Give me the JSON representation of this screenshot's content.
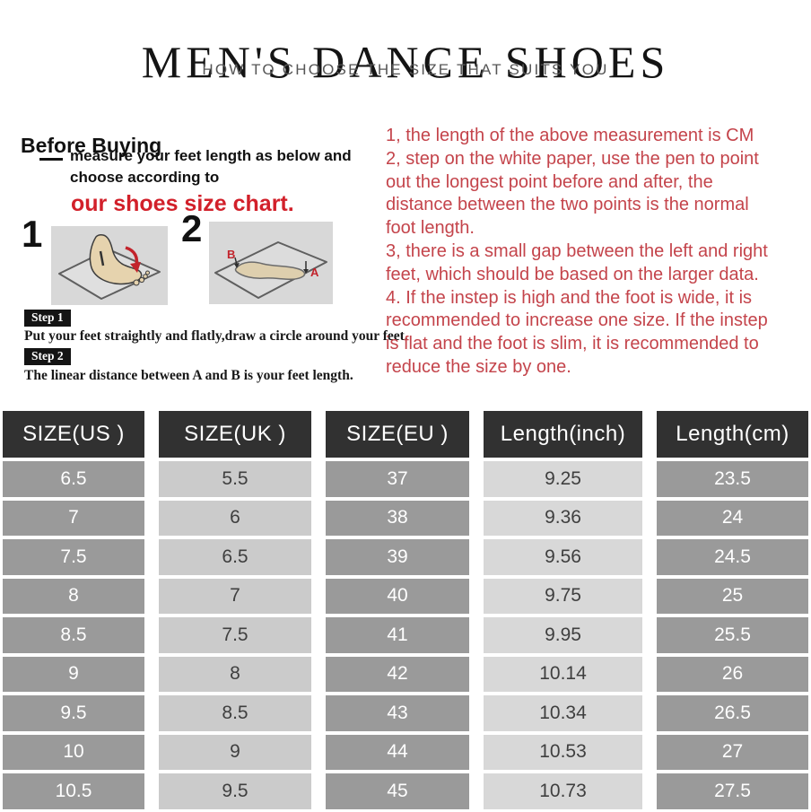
{
  "header": {
    "title": "MEN'S DANCE SHOES",
    "subtitle": "HOW TO CHOOSE THE SIZE THAT SUITS YOU"
  },
  "before_buying": {
    "heading": "Before Buying",
    "instruction_line1": "measure your feet length as below and",
    "instruction_line2": "choose according to",
    "highlight": "our shoes size chart.",
    "step1_number": "1",
    "step2_number": "2",
    "illustration1_icon": "foot-on-paper-icon",
    "illustration2_icon": "foot-outline-trace-icon",
    "marker_a": "A",
    "marker_b": "B",
    "step1_label": "Step 1",
    "step1_text": "Put your feet straightly and flatly,draw a circle around your feet.",
    "step2_label": "Step 2",
    "step2_text": "The linear distance between A and B is your feet length."
  },
  "notes": {
    "lines": [
      "1, the length of the above measurement is CM",
      "2, step on the white paper, use the pen to point",
      "out the longest point before and after, the",
      "distance between the two points is the normal",
      "foot length.",
      "3, there is a small gap between the left and right",
      "feet, which should be based on the larger data.",
      "4. If the instep is high and the foot is wide, it is",
      "recommended to increase one size. If the instep",
      "is flat and the foot is slim, it is recommended to",
      "reduce the size by one."
    ]
  },
  "size_table": {
    "headers": [
      "SIZE(US )",
      "SIZE(UK )",
      "SIZE(EU )",
      "Length(inch)",
      "Length(cm)"
    ],
    "rows": [
      [
        "6.5",
        "5.5",
        "37",
        "9.25",
        "23.5"
      ],
      [
        "7",
        "6",
        "38",
        "9.36",
        "24"
      ],
      [
        "7.5",
        "6.5",
        "39",
        "9.56",
        "24.5"
      ],
      [
        "8",
        "7",
        "40",
        "9.75",
        "25"
      ],
      [
        "8.5",
        "7.5",
        "41",
        "9.95",
        "25.5"
      ],
      [
        "9",
        "8",
        "42",
        "10.14",
        "26"
      ],
      [
        "9.5",
        "8.5",
        "43",
        "10.34",
        "26.5"
      ],
      [
        "10",
        "9",
        "44",
        "10.53",
        "27"
      ],
      [
        "10.5",
        "9.5",
        "45",
        "10.73",
        "27.5"
      ]
    ]
  },
  "colors": {
    "accent_red": "#d2202a",
    "note_red": "#c4444b",
    "table_header_bg": "#313131",
    "table_dark_cell_bg": "#9a9a9a",
    "table_light_cell_bg": "#cbcbcb",
    "table_lighter_cell_bg": "#d8d8d8",
    "illustration_bg": "#d8d8d8",
    "foot_fill": "#e6d3ae"
  }
}
